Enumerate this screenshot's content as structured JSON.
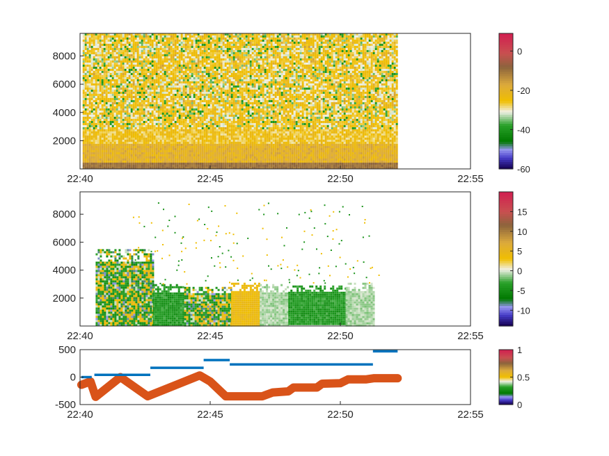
{
  "chart_data": [
    {
      "type": "heatmap",
      "title": "",
      "xlabel": "",
      "ylabel": "",
      "x_ticks": [
        "22:40",
        "22:45",
        "22:50",
        "22:55"
      ],
      "y_ticks": [
        "2000",
        "4000",
        "6000",
        "8000"
      ],
      "ylim": [
        0,
        9600
      ],
      "x_range_minutes": [
        0,
        15
      ],
      "data_extent_minutes": [
        0.1,
        12.2
      ],
      "colorbar": {
        "ticks": [
          "0",
          "-20",
          "-40",
          "-60"
        ],
        "range": [
          -60,
          9
        ]
      },
      "description_of_field": "noisy yellow-green field, brown near ground, yellow band below 2000"
    },
    {
      "type": "heatmap",
      "title": "",
      "xlabel": "",
      "ylabel": "",
      "x_ticks": [
        "22:40",
        "22:45",
        "22:50",
        "22:55"
      ],
      "y_ticks": [
        "2000",
        "4000",
        "6000",
        "8000"
      ],
      "ylim": [
        0,
        9600
      ],
      "colorbar": {
        "ticks": [
          "15",
          "10",
          "5",
          "0",
          "-5",
          "-10"
        ],
        "range": [
          -14,
          20
        ]
      },
      "segments": [
        {
          "t0": 0.6,
          "t1": 2.8,
          "top": 5500,
          "tone": "mixed"
        },
        {
          "t0": 2.8,
          "t1": 4.0,
          "top": 3000,
          "tone": "green"
        },
        {
          "t0": 4.0,
          "t1": 5.8,
          "top": 2800,
          "tone": "mixed"
        },
        {
          "t0": 5.8,
          "t1": 6.9,
          "top": 3100,
          "tone": "yellow"
        },
        {
          "t0": 6.9,
          "t1": 8.0,
          "top": 3000,
          "tone": "lightgreen"
        },
        {
          "t0": 8.0,
          "t1": 10.2,
          "top": 2900,
          "tone": "green"
        },
        {
          "t0": 10.2,
          "t1": 11.3,
          "top": 3100,
          "tone": "lightgreen"
        }
      ]
    },
    {
      "type": "line",
      "title": "",
      "xlabel": "",
      "ylabel": "",
      "x_ticks": [
        "22:40",
        "22:45",
        "22:50",
        "22:55"
      ],
      "y_ticks": [
        "500",
        "0",
        "-500"
      ],
      "ylim": [
        -500,
        500
      ],
      "colorbar": {
        "ticks": [
          "1",
          "0.5",
          "0"
        ],
        "range": [
          0,
          1
        ]
      },
      "series": [
        {
          "color": "#0072BD",
          "style": "step-segments",
          "segments": [
            [
              0.05,
              0.45,
              0
            ],
            [
              0.55,
              2.7,
              40
            ],
            [
              2.7,
              4.75,
              170
            ],
            [
              4.75,
              5.75,
              310
            ],
            [
              5.75,
              11.25,
              230
            ],
            [
              11.25,
              12.2,
              470
            ]
          ]
        },
        {
          "color": "#D95319",
          "style": "thick-markers",
          "x": [
            0.05,
            0.4,
            0.6,
            1.55,
            2.6,
            4.6,
            5.0,
            5.6,
            7.0,
            7.4,
            8.0,
            8.2,
            9.1,
            9.3,
            10.0,
            10.3,
            11.0,
            11.3,
            12.2
          ],
          "y": [
            -140,
            -80,
            -360,
            0,
            -350,
            30,
            -80,
            -350,
            -350,
            -280,
            -260,
            -190,
            -190,
            -120,
            -110,
            -40,
            -40,
            -20,
            -20
          ]
        }
      ]
    }
  ]
}
